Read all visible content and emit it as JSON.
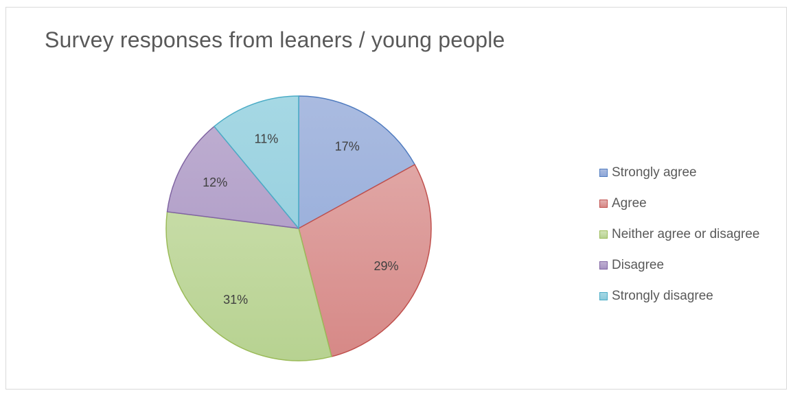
{
  "chart_data": {
    "type": "pie",
    "title": "Survey responses from leaners / young people",
    "categories": [
      "Strongly agree",
      "Agree",
      "Neither agree or disagree",
      "Disagree",
      "Strongly disagree"
    ],
    "values": [
      17,
      29,
      31,
      12,
      11
    ],
    "data_labels": [
      "17%",
      "29%",
      "31%",
      "12%",
      "11%"
    ],
    "colors": [
      {
        "light": "#aabbe0",
        "dark": "#8ea7d8",
        "stroke": "#4f7bbf"
      },
      {
        "light": "#e4b1b0",
        "dark": "#d68886",
        "stroke": "#c0504d"
      },
      {
        "light": "#d2e3b6",
        "dark": "#b7d291",
        "stroke": "#9bbb59"
      },
      {
        "light": "#c0b0d2",
        "dark": "#a692c1",
        "stroke": "#8064a2"
      },
      {
        "light": "#a6d8e4",
        "dark": "#8ccadb",
        "stroke": "#4bacc6"
      }
    ],
    "legend_position": "right"
  }
}
